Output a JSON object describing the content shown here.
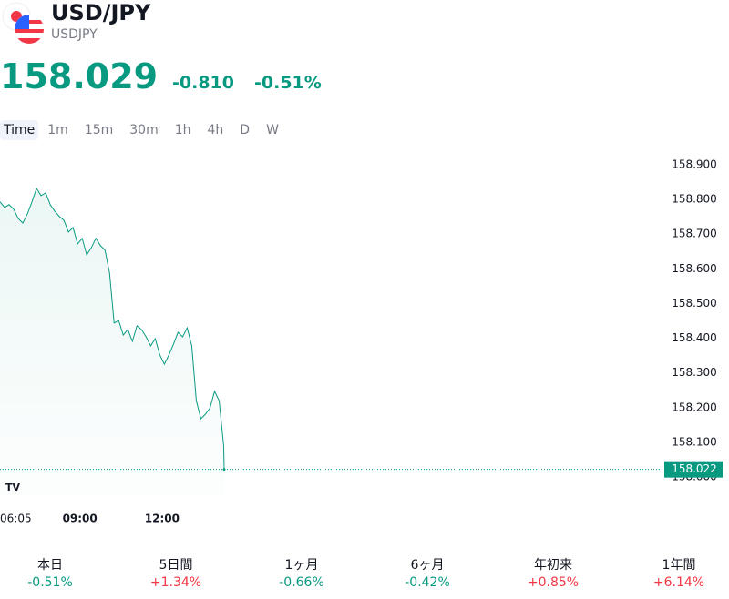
{
  "header": {
    "title": "USD/JPY",
    "symbol": "USDJPY",
    "price": "158.029",
    "change": "-0.810",
    "change_percent": "-0.51%"
  },
  "tabs": [
    "Time",
    "1m",
    "15m",
    "30m",
    "1h",
    "4h",
    "D",
    "W"
  ],
  "chart_data": {
    "type": "area",
    "color": "#089981",
    "x": [
      "06:05",
      "06:15",
      "06:25",
      "06:35",
      "06:45",
      "06:55",
      "07:05",
      "07:15",
      "07:25",
      "07:35",
      "07:45",
      "07:55",
      "08:05",
      "08:15",
      "08:25",
      "08:35",
      "08:45",
      "08:55",
      "09:05",
      "09:15",
      "09:25",
      "09:35",
      "09:45",
      "09:55",
      "10:05",
      "10:15",
      "10:25",
      "10:35",
      "10:45",
      "10:55",
      "11:05",
      "11:15",
      "11:25",
      "11:35",
      "11:45",
      "11:55",
      "12:05",
      "12:15",
      "12:25",
      "12:35",
      "12:45",
      "12:55",
      "13:05",
      "13:15",
      "13:25",
      "13:35",
      "13:45",
      "13:55",
      "14:05",
      "14:15",
      "14:16"
    ],
    "values": [
      158.793,
      158.777,
      158.785,
      158.772,
      158.745,
      158.732,
      158.758,
      158.793,
      158.832,
      158.811,
      158.819,
      158.785,
      158.766,
      158.751,
      158.74,
      158.706,
      158.719,
      158.672,
      158.688,
      158.64,
      158.661,
      158.688,
      158.667,
      158.654,
      158.588,
      158.444,
      158.451,
      158.409,
      158.425,
      158.391,
      158.436,
      158.425,
      158.404,
      158.378,
      158.399,
      158.352,
      158.325,
      158.352,
      158.383,
      158.417,
      158.404,
      158.43,
      158.378,
      158.22,
      158.168,
      158.181,
      158.199,
      158.247,
      158.22,
      158.089,
      158.022
    ],
    "last_price": 158.022,
    "ylim": [
      157.945,
      158.955
    ],
    "yticks": [
      {
        "value": 158.0,
        "label": "158.000"
      },
      {
        "value": 158.1,
        "label": "158.100"
      },
      {
        "value": 158.2,
        "label": "158.200"
      },
      {
        "value": 158.3,
        "label": "158.300"
      },
      {
        "value": 158.4,
        "label": "158.400"
      },
      {
        "value": 158.5,
        "label": "158.500"
      },
      {
        "value": 158.6,
        "label": "158.600"
      },
      {
        "value": 158.7,
        "label": "158.700"
      },
      {
        "value": 158.8,
        "label": "158.800"
      },
      {
        "value": 158.9,
        "label": "158.900"
      }
    ],
    "xticks": [
      "06:05",
      "09:00",
      "12:00"
    ]
  },
  "performance": [
    {
      "label": "本日",
      "value": "-0.51%"
    },
    {
      "label": "5日間",
      "value": "+1.34%"
    },
    {
      "label": "1ヶ月",
      "value": "-0.66%"
    },
    {
      "label": "6ヶ月",
      "value": "-0.42%"
    },
    {
      "label": "年初来",
      "value": "+0.85%"
    },
    {
      "label": "1年間",
      "value": "+6.14%"
    }
  ]
}
